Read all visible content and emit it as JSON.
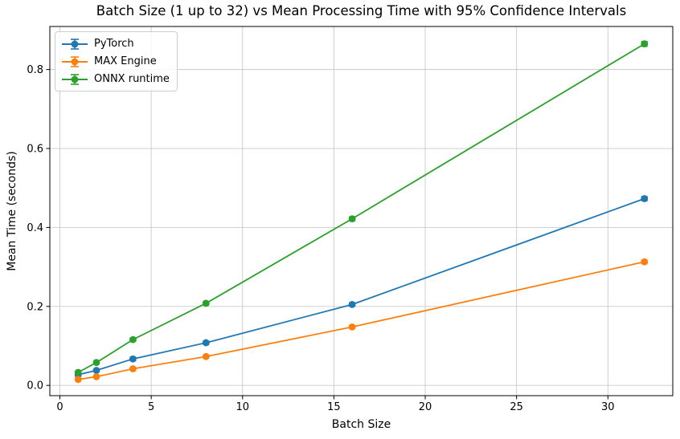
{
  "chart_data": {
    "type": "line",
    "title": "Batch Size (1 up to 32) vs Mean Processing Time with 95% Confidence Intervals",
    "xlabel": "Batch Size",
    "ylabel": "Mean Time (seconds)",
    "x": [
      1,
      2,
      4,
      8,
      16,
      32
    ],
    "series": [
      {
        "name": "PyTorch",
        "color": "#1f77b4",
        "values": [
          0.027,
          0.038,
          0.067,
          0.108,
          0.205,
          0.473
        ],
        "yerr": [
          0.004,
          0.003,
          0.004,
          0.004,
          0.004,
          0.005
        ]
      },
      {
        "name": "MAX Engine",
        "color": "#ff7f0e",
        "values": [
          0.015,
          0.022,
          0.042,
          0.073,
          0.148,
          0.313
        ],
        "yerr": [
          0.003,
          0.002,
          0.003,
          0.003,
          0.003,
          0.004
        ]
      },
      {
        "name": "ONNX runtime",
        "color": "#2ca02c",
        "values": [
          0.033,
          0.058,
          0.116,
          0.208,
          0.422,
          0.865
        ],
        "yerr": [
          0.003,
          0.003,
          0.004,
          0.004,
          0.005,
          0.006
        ]
      }
    ],
    "xlim": [
      -0.55,
      33.55
    ],
    "ylim": [
      -0.026,
      0.909
    ],
    "xticks": {
      "values": [
        0,
        5,
        10,
        15,
        20,
        25,
        30
      ],
      "labels": [
        "0",
        "5",
        "10",
        "15",
        "20",
        "25",
        "30"
      ]
    },
    "yticks": {
      "values": [
        0.0,
        0.2,
        0.4,
        0.6,
        0.8
      ],
      "labels": [
        "0.0",
        "0.2",
        "0.4",
        "0.6",
        "0.8"
      ]
    },
    "grid": true,
    "legend_position": "upper-left",
    "marker": "circle-with-error-caps"
  },
  "colors": {
    "background": "#ffffff",
    "grid": "#c9c9c9",
    "spine": "#000000",
    "pytorch": "#1f77b4",
    "max_engine": "#ff7f0e",
    "onnx_runtime": "#2ca02c"
  }
}
